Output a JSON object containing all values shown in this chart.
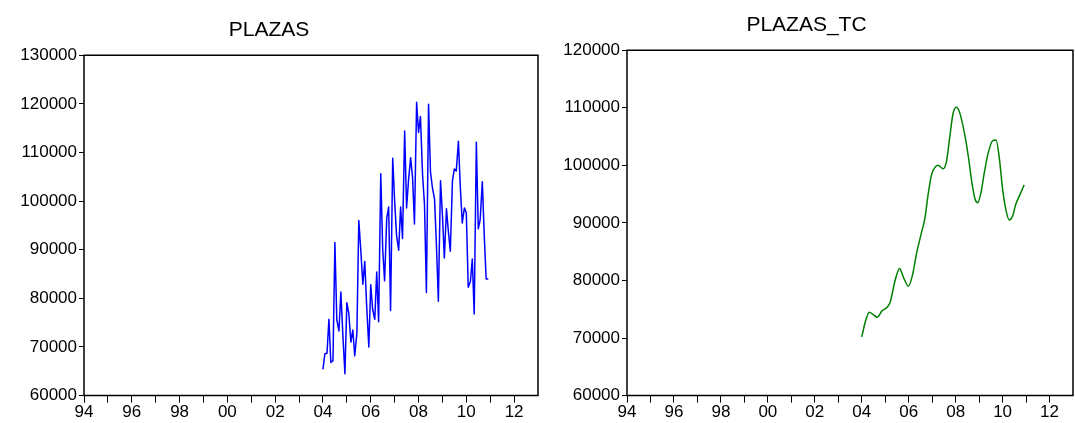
{
  "chart_data": [
    {
      "type": "line",
      "title": "PLAZAS",
      "color": "#0000ff",
      "x": [
        2004,
        2004.08,
        2004.17,
        2004.25,
        2004.33,
        2004.42,
        2004.5,
        2004.58,
        2004.67,
        2004.75,
        2004.83,
        2004.92,
        2005,
        2005.08,
        2005.17,
        2005.25,
        2005.33,
        2005.42,
        2005.5,
        2005.58,
        2005.67,
        2005.75,
        2005.83,
        2005.92,
        2006,
        2006.08,
        2006.17,
        2006.25,
        2006.33,
        2006.42,
        2006.5,
        2006.58,
        2006.67,
        2006.75,
        2006.83,
        2006.92,
        2007,
        2007.08,
        2007.17,
        2007.25,
        2007.33,
        2007.42,
        2007.5,
        2007.58,
        2007.67,
        2007.75,
        2007.83,
        2007.92,
        2008,
        2008.08,
        2008.17,
        2008.25,
        2008.33,
        2008.42,
        2008.5,
        2008.58,
        2008.67,
        2008.75,
        2008.83,
        2008.92,
        2009,
        2009.08,
        2009.17,
        2009.25,
        2009.33,
        2009.42,
        2009.5,
        2009.58,
        2009.67,
        2009.75,
        2009.83,
        2009.92,
        2010,
        2010.08,
        2010.17,
        2010.25,
        2010.33,
        2010.42,
        2010.5,
        2010.58,
        2010.67,
        2010.75,
        2010.83,
        2010.92
      ],
      "values": [
        65400,
        68600,
        68700,
        75700,
        66800,
        67200,
        91500,
        75600,
        73300,
        81300,
        72800,
        64500,
        79100,
        77000,
        71000,
        73500,
        68200,
        72800,
        96000,
        90200,
        82900,
        87600,
        78400,
        70000,
        82800,
        77700,
        75700,
        85400,
        75200,
        105600,
        90200,
        83600,
        96500,
        98800,
        77500,
        108800,
        100000,
        93000,
        89900,
        98800,
        92300,
        114400,
        98600,
        104200,
        108900,
        104900,
        95300,
        120300,
        114100,
        117400,
        105300,
        99300,
        81200,
        119900,
        106000,
        102800,
        100400,
        90900,
        79400,
        104200,
        97200,
        88300,
        98400,
        93700,
        89700,
        104200,
        106600,
        106200,
        112300,
        102800,
        95500,
        98600,
        97600,
        82300,
        83400,
        88100,
        76800,
        112100,
        94300,
        96200,
        104000,
        93000,
        84000,
        84000
      ],
      "xlim": [
        1994,
        2013
      ],
      "ylim": [
        60000,
        130000
      ],
      "xticks": [
        {
          "value": 1994,
          "label": "94"
        },
        {
          "value": 1995,
          "label": null
        },
        {
          "value": 1996,
          "label": "96"
        },
        {
          "value": 1997,
          "label": null
        },
        {
          "value": 1998,
          "label": "98"
        },
        {
          "value": 1999,
          "label": null
        },
        {
          "value": 2000,
          "label": "00"
        },
        {
          "value": 2001,
          "label": null
        },
        {
          "value": 2002,
          "label": "02"
        },
        {
          "value": 2003,
          "label": null
        },
        {
          "value": 2004,
          "label": "04"
        },
        {
          "value": 2005,
          "label": null
        },
        {
          "value": 2006,
          "label": "06"
        },
        {
          "value": 2007,
          "label": null
        },
        {
          "value": 2008,
          "label": "08"
        },
        {
          "value": 2009,
          "label": null
        },
        {
          "value": 2010,
          "label": "10"
        },
        {
          "value": 2011,
          "label": null
        },
        {
          "value": 2012,
          "label": "12"
        }
      ],
      "yticks": [
        60000,
        70000,
        80000,
        90000,
        100000,
        110000,
        120000,
        130000
      ],
      "grid": false
    },
    {
      "type": "line",
      "title": "PLAZAS_TC",
      "color": "#008000",
      "x": [
        2004,
        2004.16,
        2004.32,
        2004.48,
        2004.66,
        2004.86,
        2005.07,
        2005.21,
        2005.42,
        2005.61,
        2005.78,
        2005.99,
        2006.16,
        2006.34,
        2006.55,
        2006.69,
        2006.83,
        2006.97,
        2007.11,
        2007.25,
        2007.47,
        2007.61,
        2007.75,
        2007.89,
        2008.03,
        2008.17,
        2008.38,
        2008.55,
        2008.69,
        2008.83,
        2008.94,
        2009.08,
        2009.23,
        2009.39,
        2009.58,
        2009.72,
        2009.86,
        2010,
        2010.14,
        2010.28,
        2010.42,
        2010.56,
        2010.75,
        2010.92
      ],
      "values": [
        70200,
        72900,
        74500,
        74100,
        73600,
        74700,
        75300,
        76200,
        80000,
        82100,
        80500,
        79000,
        80900,
        84800,
        88400,
        90800,
        95000,
        98300,
        99600,
        100000,
        99400,
        100700,
        104900,
        109000,
        110100,
        109200,
        105500,
        101300,
        97100,
        94100,
        93500,
        95300,
        98900,
        102200,
        104300,
        104400,
        101300,
        95900,
        92300,
        90500,
        91100,
        93200,
        95000,
        96600
      ],
      "xlim": [
        1994,
        2013
      ],
      "ylim": [
        60000,
        120000
      ],
      "xticks": [
        {
          "value": 1994,
          "label": "94"
        },
        {
          "value": 1995,
          "label": null
        },
        {
          "value": 1996,
          "label": "96"
        },
        {
          "value": 1997,
          "label": null
        },
        {
          "value": 1998,
          "label": "98"
        },
        {
          "value": 1999,
          "label": null
        },
        {
          "value": 2000,
          "label": "00"
        },
        {
          "value": 2001,
          "label": null
        },
        {
          "value": 2002,
          "label": "02"
        },
        {
          "value": 2003,
          "label": null
        },
        {
          "value": 2004,
          "label": "04"
        },
        {
          "value": 2005,
          "label": null
        },
        {
          "value": 2006,
          "label": "06"
        },
        {
          "value": 2007,
          "label": null
        },
        {
          "value": 2008,
          "label": "08"
        },
        {
          "value": 2009,
          "label": null
        },
        {
          "value": 2010,
          "label": "10"
        },
        {
          "value": 2011,
          "label": null
        },
        {
          "value": 2012,
          "label": "12"
        }
      ],
      "yticks": [
        60000,
        70000,
        80000,
        90000,
        100000,
        110000,
        120000
      ],
      "grid": false
    }
  ]
}
